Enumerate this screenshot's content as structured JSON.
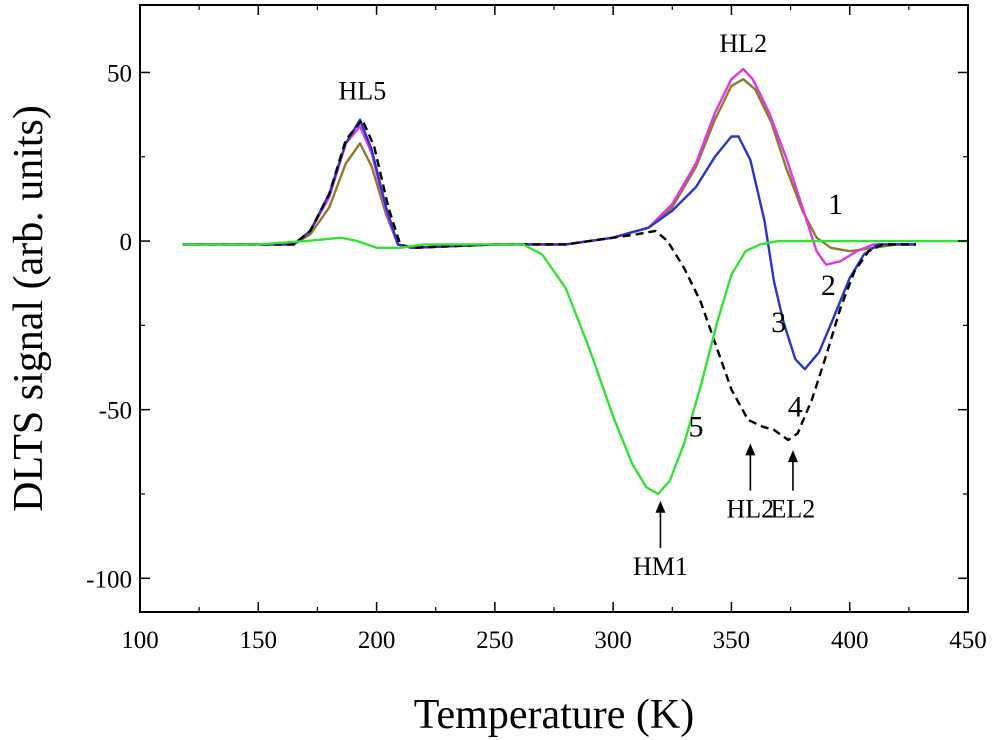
{
  "chart_data": {
    "type": "line",
    "xlabel": "Temperature (K)",
    "ylabel": "DLTS signal (arb. units)",
    "xlim": [
      100,
      450
    ],
    "ylim": [
      -110,
      70
    ],
    "x_ticks": [
      100,
      150,
      200,
      250,
      300,
      350,
      400,
      450
    ],
    "y_ticks": [
      -100,
      -50,
      0,
      50
    ],
    "x_tick_labels": [
      "100",
      "150",
      "200",
      "250",
      "300",
      "350",
      "400",
      "450"
    ],
    "y_tick_labels": [
      "-100",
      "-50",
      "0",
      "50"
    ],
    "grid": false,
    "series": [
      {
        "name": "1",
        "color": "#8b7d2a",
        "dash": "solid",
        "points": [
          [
            118,
            -1
          ],
          [
            150,
            -1
          ],
          [
            165,
            -1
          ],
          [
            172,
            2
          ],
          [
            180,
            10
          ],
          [
            187,
            23
          ],
          [
            193,
            29
          ],
          [
            198,
            22
          ],
          [
            204,
            8
          ],
          [
            209,
            -1
          ],
          [
            215,
            -2
          ],
          [
            250,
            -1
          ],
          [
            280,
            -1
          ],
          [
            300,
            1
          ],
          [
            315,
            4
          ],
          [
            325,
            10
          ],
          [
            335,
            22
          ],
          [
            343,
            36
          ],
          [
            350,
            46
          ],
          [
            355,
            48
          ],
          [
            360,
            45
          ],
          [
            367,
            35
          ],
          [
            373,
            22
          ],
          [
            380,
            9
          ],
          [
            386,
            1
          ],
          [
            392,
            -2
          ],
          [
            400,
            -3
          ],
          [
            410,
            -2
          ],
          [
            420,
            -1
          ],
          [
            428,
            -1
          ]
        ]
      },
      {
        "name": "2",
        "color": "#e236e2",
        "dash": "solid",
        "points": [
          [
            118,
            -1
          ],
          [
            150,
            -1
          ],
          [
            165,
            -1
          ],
          [
            172,
            3
          ],
          [
            180,
            13
          ],
          [
            187,
            29
          ],
          [
            193,
            34
          ],
          [
            198,
            26
          ],
          [
            204,
            9
          ],
          [
            209,
            -1
          ],
          [
            215,
            -2
          ],
          [
            250,
            -1
          ],
          [
            280,
            -1
          ],
          [
            300,
            1
          ],
          [
            315,
            4
          ],
          [
            325,
            11
          ],
          [
            335,
            23
          ],
          [
            343,
            38
          ],
          [
            350,
            48
          ],
          [
            355,
            51
          ],
          [
            359,
            48
          ],
          [
            366,
            38
          ],
          [
            373,
            25
          ],
          [
            380,
            10
          ],
          [
            386,
            -3
          ],
          [
            390,
            -7
          ],
          [
            396,
            -6
          ],
          [
            403,
            -3
          ],
          [
            410,
            -1
          ],
          [
            428,
            -1
          ]
        ]
      },
      {
        "name": "3",
        "color": "#2a35c8",
        "dash": "solid",
        "points": [
          [
            118,
            -1
          ],
          [
            150,
            -1
          ],
          [
            165,
            -1
          ],
          [
            172,
            3
          ],
          [
            180,
            14
          ],
          [
            187,
            29
          ],
          [
            193,
            36
          ],
          [
            198,
            27
          ],
          [
            204,
            10
          ],
          [
            209,
            -1
          ],
          [
            215,
            -2
          ],
          [
            250,
            -1
          ],
          [
            280,
            -1
          ],
          [
            300,
            1
          ],
          [
            315,
            4
          ],
          [
            325,
            9
          ],
          [
            335,
            16
          ],
          [
            343,
            25
          ],
          [
            350,
            31
          ],
          [
            353,
            31
          ],
          [
            358,
            24
          ],
          [
            364,
            6
          ],
          [
            368,
            -12
          ],
          [
            372,
            -24
          ],
          [
            377,
            -35
          ],
          [
            381,
            -38
          ],
          [
            387,
            -33
          ],
          [
            393,
            -23
          ],
          [
            400,
            -11
          ],
          [
            406,
            -4
          ],
          [
            412,
            -1
          ],
          [
            428,
            -1
          ]
        ]
      },
      {
        "name": "4",
        "color": "#000000",
        "dash": "dashed",
        "points": [
          [
            118,
            -1
          ],
          [
            150,
            -1
          ],
          [
            165,
            -1
          ],
          [
            172,
            3
          ],
          [
            180,
            14
          ],
          [
            187,
            30
          ],
          [
            194,
            36
          ],
          [
            199,
            28
          ],
          [
            205,
            10
          ],
          [
            210,
            -1
          ],
          [
            215,
            -2
          ],
          [
            250,
            -1
          ],
          [
            280,
            -1
          ],
          [
            300,
            1
          ],
          [
            310,
            2
          ],
          [
            318,
            3
          ],
          [
            323,
            0
          ],
          [
            330,
            -8
          ],
          [
            337,
            -18
          ],
          [
            344,
            -32
          ],
          [
            350,
            -44
          ],
          [
            357,
            -53
          ],
          [
            363,
            -55
          ],
          [
            368,
            -56
          ],
          [
            374,
            -59
          ],
          [
            378,
            -57
          ],
          [
            384,
            -47
          ],
          [
            390,
            -34
          ],
          [
            396,
            -20
          ],
          [
            402,
            -9
          ],
          [
            408,
            -3
          ],
          [
            414,
            -1
          ],
          [
            428,
            -1
          ]
        ]
      },
      {
        "name": "5",
        "color": "#33e233",
        "dash": "solid",
        "points": [
          [
            118,
            -1
          ],
          [
            150,
            -1
          ],
          [
            170,
            0
          ],
          [
            185,
            1
          ],
          [
            192,
            0
          ],
          [
            200,
            -2
          ],
          [
            210,
            -2
          ],
          [
            220,
            -1
          ],
          [
            250,
            -1
          ],
          [
            262,
            -1
          ],
          [
            270,
            -4
          ],
          [
            280,
            -14
          ],
          [
            290,
            -32
          ],
          [
            300,
            -52
          ],
          [
            308,
            -66
          ],
          [
            314,
            -73
          ],
          [
            319,
            -75
          ],
          [
            324,
            -71
          ],
          [
            330,
            -60
          ],
          [
            337,
            -43
          ],
          [
            344,
            -24
          ],
          [
            350,
            -10
          ],
          [
            356,
            -3
          ],
          [
            362,
            -1
          ],
          [
            370,
            0
          ],
          [
            400,
            0
          ],
          [
            420,
            0
          ],
          [
            450,
            0
          ]
        ]
      }
    ],
    "annotations": {
      "peak_labels": [
        {
          "text": "HL5",
          "x": 194,
          "y": 42
        },
        {
          "text": "HL2",
          "x": 355,
          "y": 56
        }
      ],
      "curve_numbers": [
        {
          "text": "1",
          "x": 394,
          "y": 8
        },
        {
          "text": "2",
          "x": 391,
          "y": -16
        },
        {
          "text": "3",
          "x": 370,
          "y": -27
        },
        {
          "text": "4",
          "x": 377,
          "y": -52
        },
        {
          "text": "5",
          "x": 335,
          "y": -58
        }
      ],
      "arrows": [
        {
          "text": "HL2",
          "x": 358,
          "tip_y": -60,
          "tail_y": -74,
          "label_y": -82
        },
        {
          "text": "EL2",
          "x": 376,
          "tip_y": -62,
          "tail_y": -74,
          "label_y": -82
        },
        {
          "text": "HM1",
          "x": 320,
          "tip_y": -77,
          "tail_y": -91,
          "label_y": -99
        }
      ]
    }
  }
}
